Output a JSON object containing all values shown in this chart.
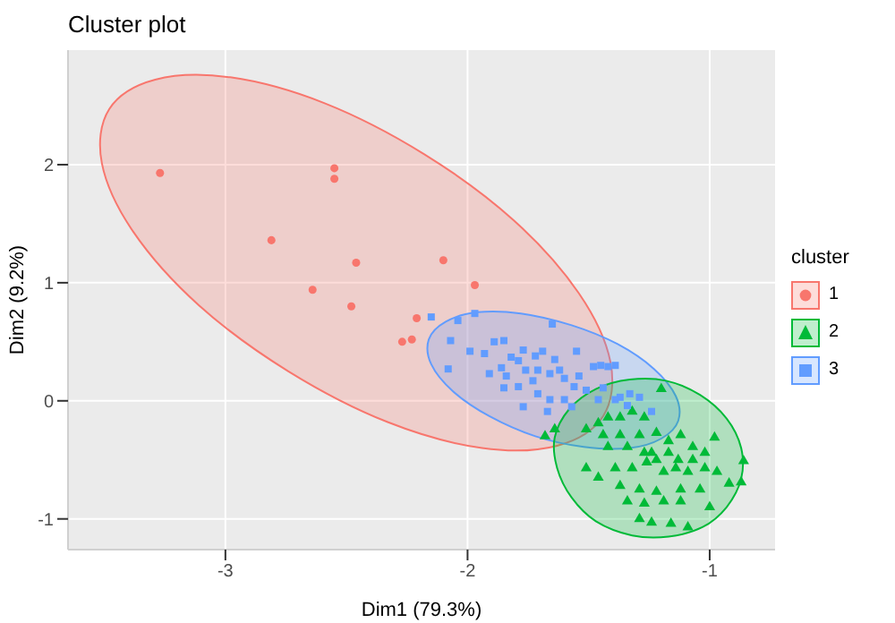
{
  "chart_data": {
    "type": "scatter",
    "title": "Cluster plot",
    "xlabel": "Dim1 (79.3%)",
    "ylabel": "Dim2 (9.2%)",
    "legend_title": "cluster",
    "legend": "right",
    "grid": true,
    "xlim": [
      -3.65,
      -0.73
    ],
    "ylim": [
      -1.26,
      2.97
    ],
    "xticks": [
      -3,
      -2,
      -1
    ],
    "yticks": [
      -1,
      0,
      1,
      2
    ],
    "series": [
      {
        "name": "1",
        "color": "#f8766d",
        "marker": "circle",
        "x": [
          -3.27,
          -2.55,
          -2.55,
          -2.81,
          -2.46,
          -2.64,
          -2.48,
          -2.1,
          -2.21,
          -2.23,
          -2.27,
          -1.97
        ],
        "values": [
          1.93,
          1.97,
          1.88,
          1.36,
          1.17,
          0.94,
          0.8,
          1.19,
          0.7,
          0.52,
          0.5,
          0.98
        ]
      },
      {
        "name": "2",
        "color": "#00ba38",
        "marker": "triangle",
        "x": [
          -1.68,
          -1.64,
          -1.51,
          -1.46,
          -1.42,
          -1.37,
          -1.32,
          -1.27,
          -1.2,
          -1.37,
          -1.29,
          -1.22,
          -1.17,
          -1.12,
          -1.07,
          -1.02,
          -0.98,
          -1.51,
          -1.46,
          -1.39,
          -1.32,
          -1.24,
          -1.19,
          -1.14,
          -1.09,
          -1.02,
          -0.97,
          -0.92,
          -0.87,
          -0.86,
          -1.42,
          -1.34,
          -1.27,
          -1.22,
          -1.37,
          -1.29,
          -1.22,
          -1.12,
          -1.04,
          -1.34,
          -1.27,
          -1.19,
          -1.12,
          -1.0,
          -1.29,
          -1.24,
          -1.16,
          -1.09,
          -1.44,
          -1.17,
          -1.13,
          -1.07,
          -1.26
        ],
        "values": [
          -0.3,
          -0.24,
          -0.24,
          -0.19,
          -0.14,
          -0.14,
          -0.09,
          -0.14,
          0.1,
          -0.29,
          -0.29,
          -0.27,
          -0.34,
          -0.29,
          -0.39,
          -0.44,
          -0.31,
          -0.57,
          -0.65,
          -0.57,
          -0.57,
          -0.44,
          -0.6,
          -0.57,
          -0.6,
          -0.57,
          -0.6,
          -0.7,
          -0.69,
          -0.51,
          -0.39,
          -0.39,
          -0.44,
          -0.5,
          -0.72,
          -0.75,
          -0.77,
          -0.75,
          -0.75,
          -0.85,
          -0.87,
          -0.85,
          -0.85,
          -0.9,
          -1.0,
          -1.03,
          -1.04,
          -1.07,
          -0.29,
          -0.44,
          -0.5,
          -0.5,
          -0.52
        ]
      },
      {
        "name": "3",
        "color": "#619cff",
        "marker": "square",
        "x": [
          -2.15,
          -2.07,
          -2.04,
          -1.97,
          -2.08,
          -1.99,
          -1.93,
          -1.89,
          -1.85,
          -1.82,
          -1.79,
          -1.77,
          -1.72,
          -1.69,
          -1.64,
          -1.55,
          -1.65,
          -1.91,
          -1.86,
          -1.79,
          -1.85,
          -1.73,
          -1.66,
          -1.6,
          -1.54,
          -1.48,
          -1.45,
          -1.42,
          -1.39,
          -1.71,
          -1.66,
          -1.6,
          -1.56,
          -1.51,
          -1.46,
          -1.44,
          -1.77,
          -1.67,
          -1.57,
          -1.37,
          -1.33,
          -1.29,
          -1.24,
          -1.34,
          -1.39,
          -1.62,
          -1.71,
          -1.76,
          -1.84
        ],
        "values": [
          0.71,
          0.51,
          0.68,
          0.74,
          0.27,
          0.42,
          0.4,
          0.5,
          0.51,
          0.37,
          0.34,
          0.43,
          0.38,
          0.42,
          0.35,
          0.42,
          0.65,
          0.23,
          0.28,
          0.12,
          0.11,
          0.17,
          0.23,
          0.19,
          0.21,
          0.29,
          0.3,
          0.29,
          0.3,
          0.06,
          0.01,
          0.01,
          0.12,
          0.09,
          0.01,
          0.11,
          -0.05,
          -0.09,
          -0.05,
          0.03,
          0.06,
          0.03,
          -0.09,
          -0.04,
          0.01,
          0.26,
          0.26,
          0.26,
          0.21
        ]
      },
      {
        "type": "area",
        "color": "#f8766d",
        "x": [
          -1.44,
          -1.63,
          -1.94,
          -2.33,
          -2.74,
          -3.11,
          -3.38,
          -3.51,
          -3.48,
          -3.29,
          -2.98,
          -2.59,
          -2.18,
          -1.81,
          -1.54,
          -1.41,
          -1.44
        ],
        "values": [
          -0.13,
          -0.38,
          -0.4,
          -0.18,
          0.25,
          0.81,
          1.43,
          2.01,
          2.47,
          2.72,
          2.74,
          2.52,
          2.09,
          1.53,
          0.91,
          0.33,
          -0.13
        ]
      },
      {
        "type": "area",
        "color": "#619cff",
        "x": [
          -1.13,
          -1.2,
          -1.33,
          -1.52,
          -1.72,
          -1.91,
          -2.06,
          -2.15,
          -2.16,
          -2.09,
          -1.96,
          -1.78,
          -1.57,
          -1.38,
          -1.23,
          -1.14,
          -1.13
        ],
        "values": [
          -0.17,
          -0.32,
          -0.4,
          -0.39,
          -0.3,
          -0.13,
          0.08,
          0.31,
          0.52,
          0.67,
          0.75,
          0.74,
          0.64,
          0.48,
          0.27,
          0.04,
          -0.17
        ]
      },
      {
        "type": "area",
        "color": "#00ba38",
        "x": [
          -0.87,
          -0.93,
          -1.03,
          -1.17,
          -1.32,
          -1.47,
          -1.57,
          -1.63,
          -1.64,
          -1.58,
          -1.47,
          -1.33,
          -1.18,
          -1.04,
          -0.93,
          -0.87,
          -0.87
        ],
        "values": [
          -0.66,
          -0.9,
          -1.07,
          -1.15,
          -1.14,
          -1.02,
          -0.82,
          -0.57,
          -0.31,
          -0.07,
          0.1,
          0.18,
          0.17,
          0.05,
          -0.15,
          -0.4,
          -0.66
        ]
      }
    ]
  }
}
